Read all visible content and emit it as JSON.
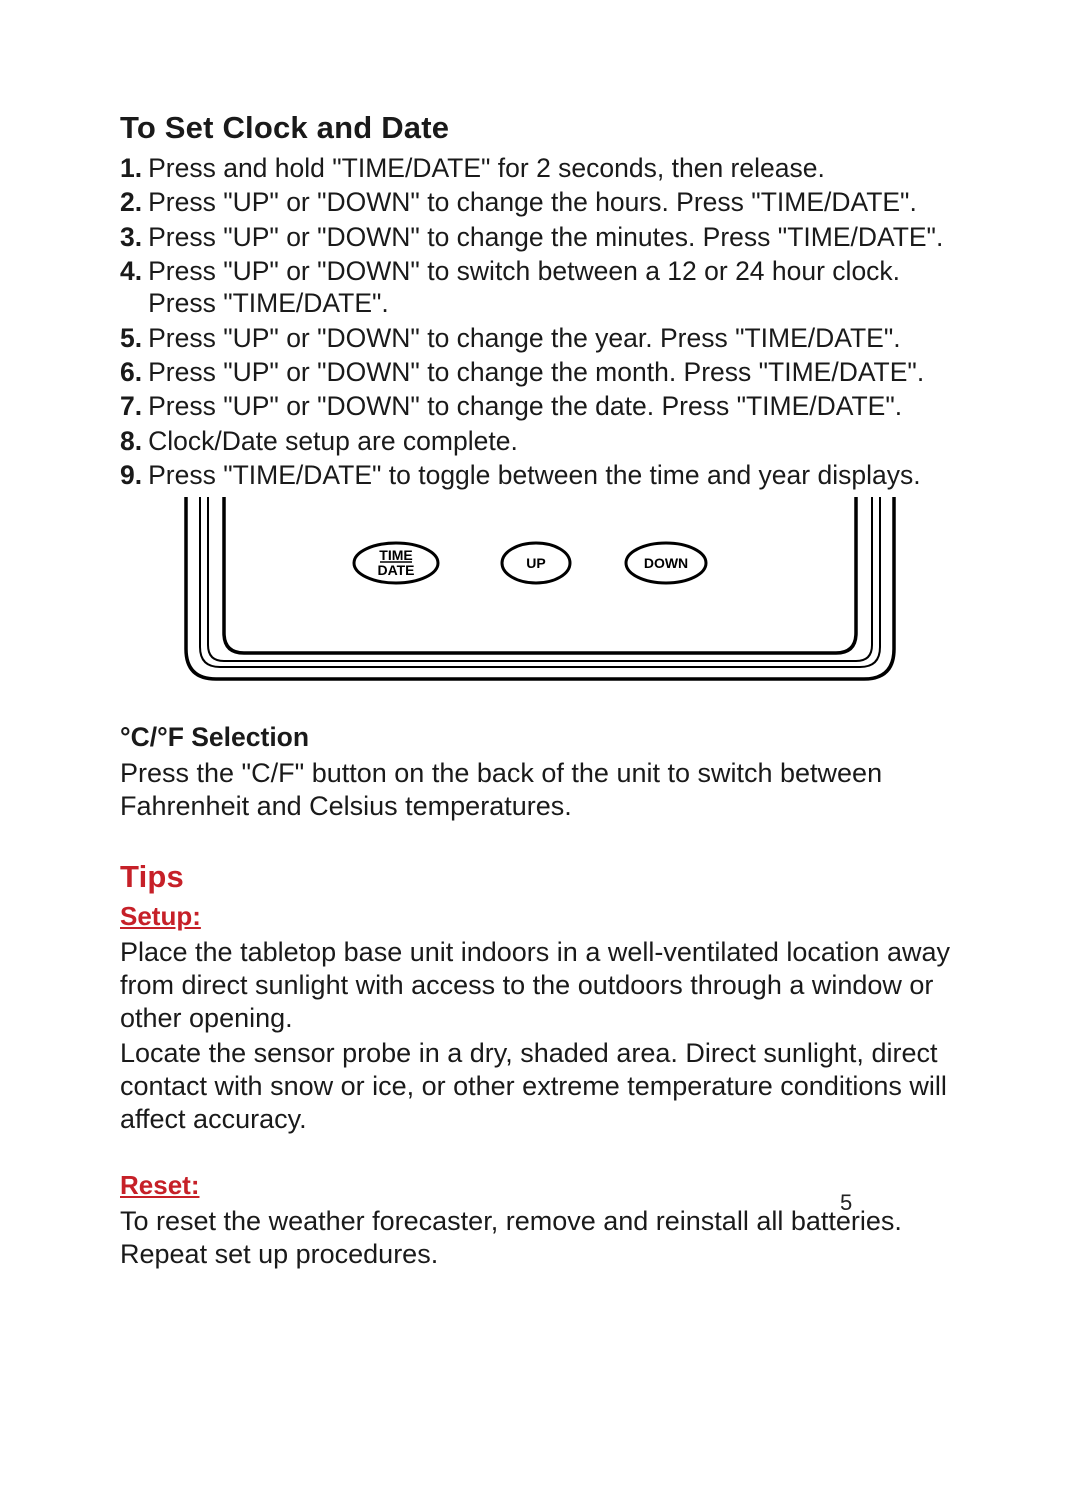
{
  "page_number": "5",
  "section_clock": {
    "heading": "To Set Clock and Date",
    "steps": [
      "Press and hold \"TIME/DATE\" for 2 seconds, then release.",
      "Press \"UP\" or \"DOWN\" to change the hours. Press \"TIME/DATE\".",
      "Press \"UP\" or \"DOWN\" to change the minutes. Press \"TIME/DATE\".",
      "Press \"UP\" or \"DOWN\" to switch between a 12 or 24 hour clock. Press \"TIME/DATE\".",
      "Press \"UP\" or \"DOWN\" to change the year. Press \"TIME/DATE\".",
      "Press \"UP\" or \"DOWN\" to change the month. Press \"TIME/DATE\".",
      "Press \"UP\" or \"DOWN\" to change the date. Press \"TIME/DATE\".",
      "Clock/Date setup are complete.",
      "Press \"TIME/DATE\" to toggle between the time and year displays."
    ]
  },
  "device": {
    "button_timedate_line1": "TIME",
    "button_timedate_line2": "DATE",
    "button_up": "UP",
    "button_down": "DOWN",
    "stroke": "#000000",
    "stroke_width": 3.5,
    "thin_stroke_width": 2
  },
  "section_cf": {
    "heading": "°C/°F Selection",
    "body": "Press the \"C/F\" button on the back of the unit to switch between Fahrenheit and Celsius temperatures."
  },
  "section_tips": {
    "heading": "Tips",
    "setup_heading": "Setup:",
    "setup_p1": "Place the tabletop base unit indoors in a well-ventilated location away from direct sunlight with access to the outdoors through a window or other opening.",
    "setup_p2": "Locate the sensor probe in a dry, shaded area. Direct sunlight, direct contact with snow or ice, or other extreme temperature conditions will affect accuracy.",
    "reset_heading": "Reset:",
    "reset_p": "To reset the weather forecaster, remove and reinstall all batteries. Repeat set up procedures."
  },
  "colors": {
    "ink": "#1a1a1a",
    "accent_red": "#c62028",
    "background": "#ffffff"
  }
}
